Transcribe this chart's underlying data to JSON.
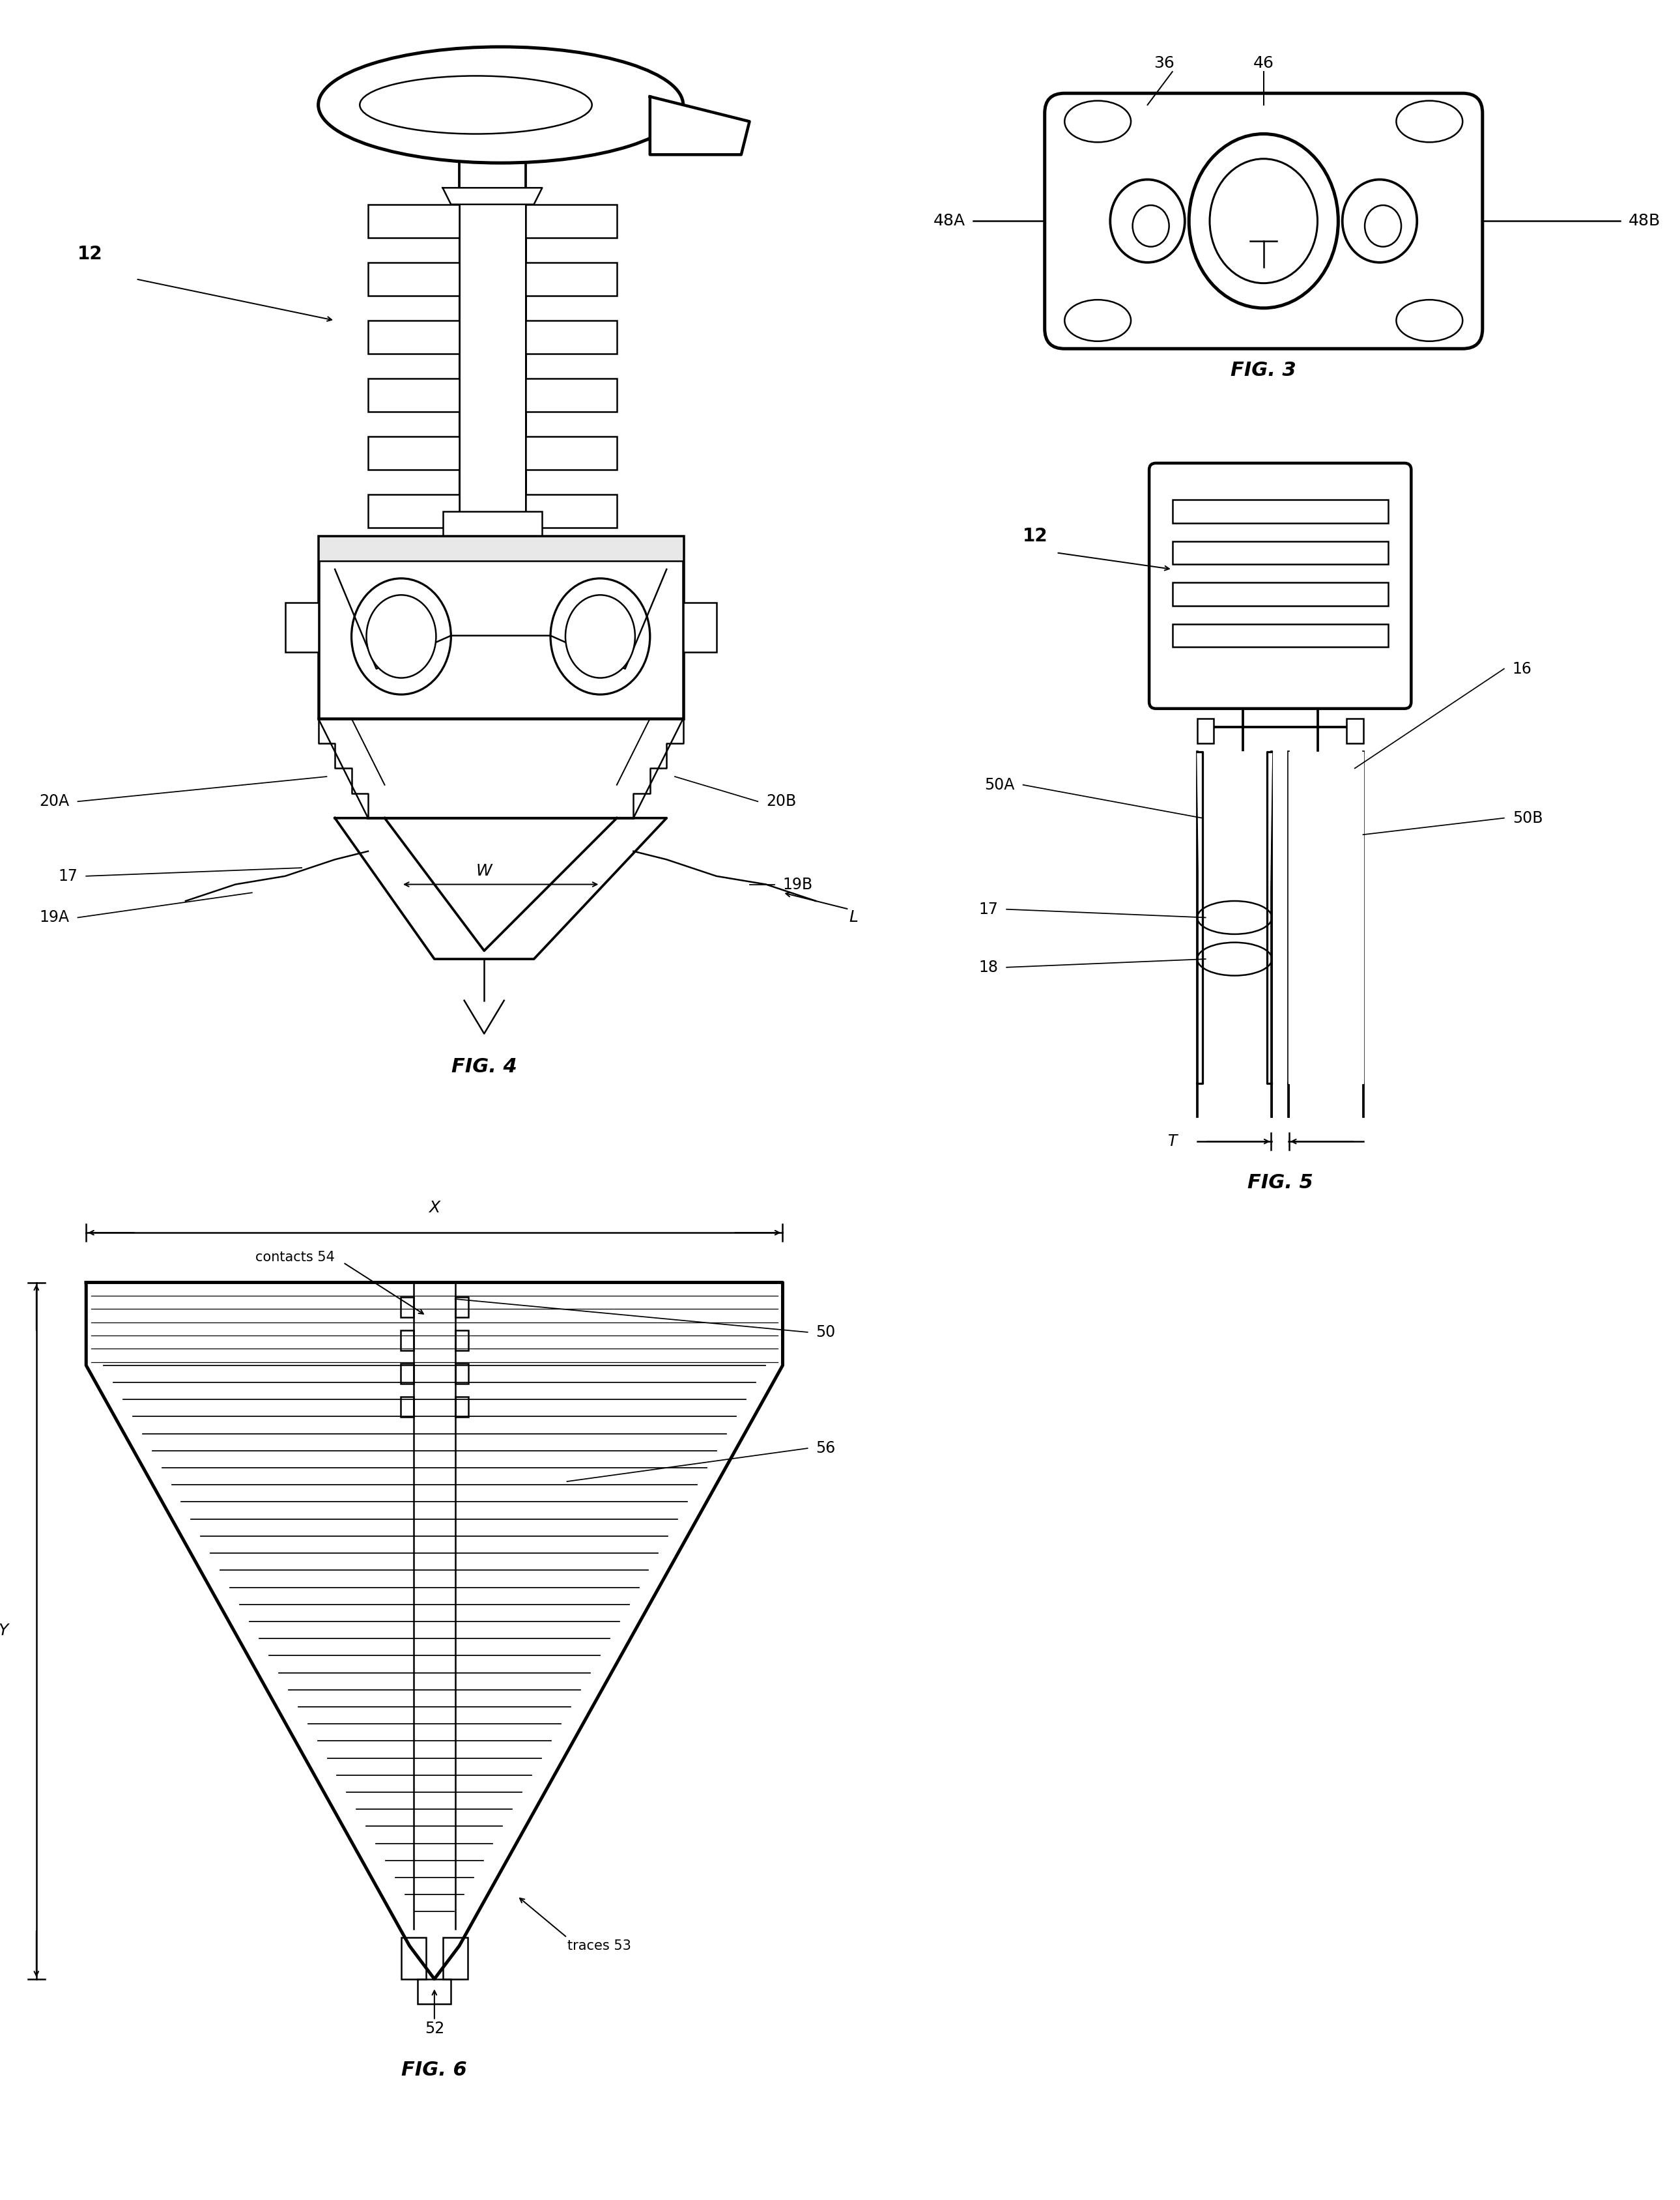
{
  "bg": "#ffffff",
  "lc": "#000000",
  "lw": 1.8,
  "fw": 25.79,
  "fh": 33.77,
  "dpi": 100,
  "fig3_label": "FIG. 3",
  "fig4_label": "FIG. 4",
  "fig5_label": "FIG. 5",
  "fig6_label": "FIG. 6",
  "l12a": "12",
  "l20A": "20A",
  "l20B": "20B",
  "lW": "W",
  "l17a": "17",
  "l19A": "19A",
  "l19B": "19B",
  "lL": "L",
  "l36": "36",
  "l46": "46",
  "l48A": "48A",
  "l48B": "48B",
  "l12b": "12",
  "l16": "16",
  "l50A": "50A",
  "l50B": "50B",
  "l17b": "17",
  "l18": "18",
  "lT": "T",
  "lX": "X",
  "lY": "Y",
  "lcontacts54": "contacts 54",
  "l50c": "50",
  "l56": "56",
  "ltraces53": "traces 53",
  "l52": "52"
}
